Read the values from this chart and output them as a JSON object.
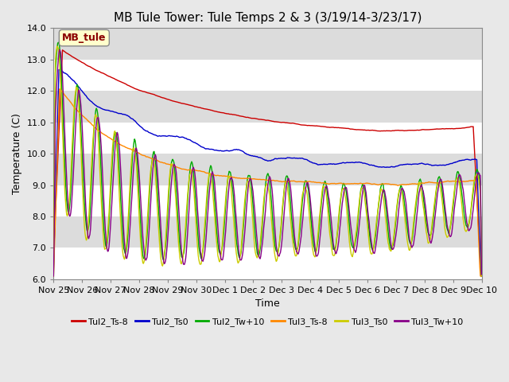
{
  "title": "MB Tule Tower: Tule Temps 2 & 3 (3/19/14-3/23/17)",
  "xlabel": "Time",
  "ylabel": "Temperature (C)",
  "ylim": [
    6.0,
    14.0
  ],
  "yticks": [
    6.0,
    7.0,
    8.0,
    9.0,
    10.0,
    11.0,
    12.0,
    13.0,
    14.0
  ],
  "xtick_labels": [
    "Nov 25",
    "Nov 26",
    "Nov 27",
    "Nov 28",
    "Nov 29",
    "Nov 30",
    "Dec 1",
    "Dec 2",
    "Dec 3",
    "Dec 4",
    "Dec 5",
    "Dec 6",
    "Dec 7",
    "Dec 8",
    "Dec 9",
    "Dec 10"
  ],
  "legend_label": "MB_tule",
  "legend_text_color": "#8B0000",
  "series": [
    {
      "name": "Tul2_Ts-8",
      "color": "#CC0000"
    },
    {
      "name": "Tul2_Ts0",
      "color": "#0000CC"
    },
    {
      "name": "Tul2_Tw+10",
      "color": "#00AA00"
    },
    {
      "name": "Tul3_Ts-8",
      "color": "#FF8800"
    },
    {
      "name": "Tul3_Ts0",
      "color": "#CCCC00"
    },
    {
      "name": "Tul3_Tw+10",
      "color": "#880088"
    }
  ],
  "plot_bg_color": "#E8E8E8",
  "band_colors": [
    "#FFFFFF",
    "#DCDCDC"
  ],
  "title_fontsize": 11,
  "axis_fontsize": 9,
  "tick_fontsize": 8
}
